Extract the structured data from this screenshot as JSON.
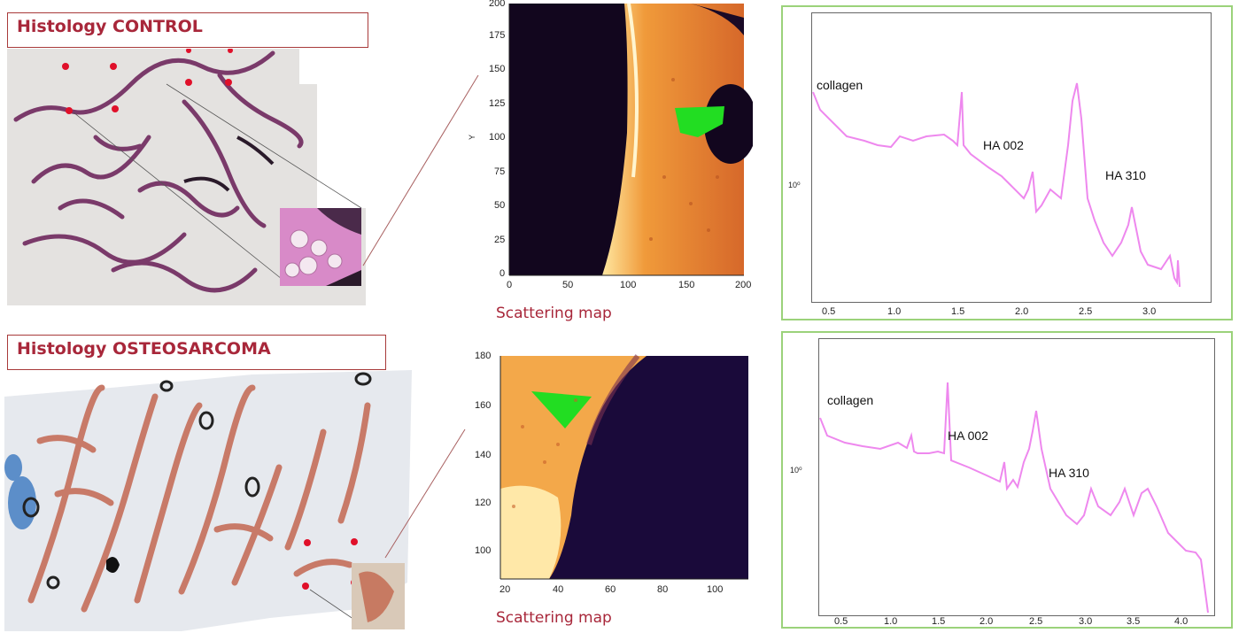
{
  "control": {
    "title": "Histology CONTROL",
    "caption": "Scattering map",
    "map_y_ticks": [
      "200",
      "175",
      "150",
      "125",
      "100",
      "75",
      "50",
      "25",
      "0"
    ],
    "map_x_ticks": [
      "0",
      "50",
      "100",
      "150",
      "200"
    ],
    "map_y_label": "Y",
    "spectrum": {
      "annotations": [
        "collagen",
        "HA 002",
        "HA 310"
      ],
      "y_tick": "10⁰",
      "x_ticks": [
        "0.5",
        "1.0",
        "1.5",
        "2.0",
        "2.5",
        "3.0"
      ]
    }
  },
  "osteosarcoma": {
    "title": "Histology OSTEOSARCOMA",
    "caption": "Scattering map",
    "map_y_ticks": [
      "180",
      "160",
      "140",
      "120",
      "100"
    ],
    "map_x_ticks": [
      "20",
      "40",
      "60",
      "80",
      "100"
    ],
    "spectrum": {
      "annotations": [
        "collagen",
        "HA 002",
        "HA 310"
      ],
      "y_tick": "10⁰",
      "x_ticks": [
        "0.5",
        "1.0",
        "1.5",
        "2.0",
        "2.5",
        "3.0",
        "3.5",
        "4.0"
      ]
    }
  },
  "colors": {
    "title_red": "#a8273a",
    "panel_green": "#9bd27a",
    "spectrum_pink": "#ee88ee",
    "roi_green": "#22dd22"
  }
}
